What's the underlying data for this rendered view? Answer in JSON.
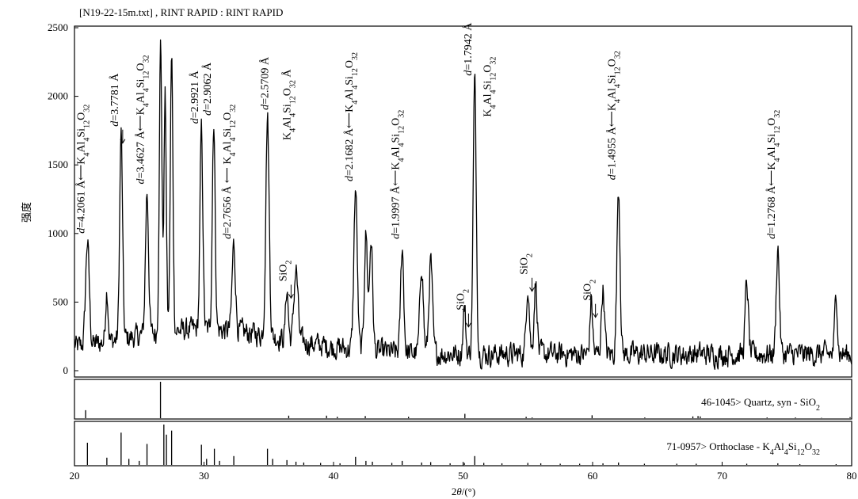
{
  "chart_data": {
    "type": "line",
    "title": "[N19-22-15m.txt] , RINT RAPID : RINT RAPID",
    "ylabel": "强度",
    "xlabel_parts": [
      "2",
      "θ",
      "/(°)"
    ],
    "xlim": [
      20,
      80
    ],
    "ylim": [
      0,
      2500
    ],
    "xticks": [
      20,
      30,
      40,
      50,
      60,
      70,
      80
    ],
    "yticks": [
      0,
      500,
      1000,
      1500,
      2000,
      2500
    ],
    "series": [
      {
        "peaks": [
          {
            "x": 21.0,
            "y": 940,
            "w": 0.14
          },
          {
            "x": 22.5,
            "y": 590,
            "w": 0.1
          },
          {
            "x": 23.6,
            "y": 1730,
            "w": 0.11
          },
          {
            "x": 25.6,
            "y": 1300,
            "w": 0.12
          },
          {
            "x": 26.65,
            "y": 2380,
            "w": 0.1
          },
          {
            "x": 27.0,
            "y": 2000,
            "w": 0.09
          },
          {
            "x": 27.5,
            "y": 2280,
            "w": 0.1
          },
          {
            "x": 29.8,
            "y": 1760,
            "w": 0.11
          },
          {
            "x": 30.75,
            "y": 1820,
            "w": 0.11
          },
          {
            "x": 32.3,
            "y": 920,
            "w": 0.13
          },
          {
            "x": 34.9,
            "y": 1850,
            "w": 0.13
          },
          {
            "x": 36.4,
            "y": 600,
            "w": 0.1
          },
          {
            "x": 37.1,
            "y": 740,
            "w": 0.15
          },
          {
            "x": 41.7,
            "y": 1330,
            "w": 0.13
          },
          {
            "x": 42.5,
            "y": 1000,
            "w": 0.12
          },
          {
            "x": 42.9,
            "y": 960,
            "w": 0.12
          },
          {
            "x": 45.3,
            "y": 900,
            "w": 0.12
          },
          {
            "x": 46.8,
            "y": 780,
            "w": 0.13
          },
          {
            "x": 47.5,
            "y": 800,
            "w": 0.13
          },
          {
            "x": 50.1,
            "y": 470,
            "w": 0.1
          },
          {
            "x": 50.9,
            "y": 2110,
            "w": 0.12
          },
          {
            "x": 55.0,
            "y": 630,
            "w": 0.12
          },
          {
            "x": 55.6,
            "y": 640,
            "w": 0.12
          },
          {
            "x": 59.9,
            "y": 520,
            "w": 0.1
          },
          {
            "x": 60.8,
            "y": 600,
            "w": 0.12
          },
          {
            "x": 62.0,
            "y": 1340,
            "w": 0.12
          },
          {
            "x": 71.9,
            "y": 640,
            "w": 0.12
          },
          {
            "x": 74.3,
            "y": 900,
            "w": 0.12
          },
          {
            "x": 78.8,
            "y": 580,
            "w": 0.1
          }
        ]
      }
    ],
    "annotations": [
      {
        "x": 21.0,
        "y": 1000,
        "arrow": "left",
        "parts": [
          [
            "d",
            "i"
          ],
          [
            "=4.2061 Å⟵K",
            ""
          ],
          [
            "4",
            "sub"
          ],
          [
            "Al",
            ""
          ],
          [
            "4",
            "sub"
          ],
          [
            "Si",
            ""
          ],
          [
            "12",
            "sub"
          ],
          [
            "O",
            ""
          ],
          [
            "32",
            "sub"
          ]
        ]
      },
      {
        "x": 23.6,
        "y": 1780,
        "arrow": "down",
        "parts": [
          [
            "d",
            "i"
          ],
          [
            "=3.7781 Å",
            ""
          ]
        ]
      },
      {
        "x": 25.6,
        "y": 1360,
        "arrow": "left",
        "parts": [
          [
            "d",
            "i"
          ],
          [
            "=3.4627 Å⟵K",
            ""
          ],
          [
            "4",
            "sub"
          ],
          [
            "Al",
            ""
          ],
          [
            "4",
            "sub"
          ],
          [
            "Si",
            ""
          ],
          [
            "12",
            "sub"
          ],
          [
            "O",
            ""
          ],
          [
            "32",
            "sub"
          ]
        ]
      },
      {
        "x": 29.8,
        "y": 1800,
        "arrow": "",
        "parts": [
          [
            "d",
            "i"
          ],
          [
            "=2.9921 Å",
            ""
          ]
        ]
      },
      {
        "x": 30.75,
        "y": 1860,
        "arrow": "",
        "parts": [
          [
            "d",
            "i"
          ],
          [
            "=2.9062 Å",
            ""
          ]
        ]
      },
      {
        "x": 32.3,
        "y": 960,
        "arrow": "left",
        "parts": [
          [
            "d",
            "i"
          ],
          [
            "=2.7656 Å ⟵ K",
            ""
          ],
          [
            "4",
            "sub"
          ],
          [
            "Al",
            ""
          ],
          [
            "4",
            "sub"
          ],
          [
            "Si",
            ""
          ],
          [
            "12",
            "sub"
          ],
          [
            "O",
            ""
          ],
          [
            "32",
            "sub"
          ]
        ]
      },
      {
        "x": 35.2,
        "y": 1900,
        "arrow": "",
        "parts": [
          [
            "d",
            "i"
          ],
          [
            "=2.5709 Å",
            ""
          ]
        ]
      },
      {
        "x": 36.9,
        "y": 1680,
        "arrow": "",
        "parts": [
          [
            "K",
            ""
          ],
          [
            "4",
            "sub"
          ],
          [
            "Al",
            ""
          ],
          [
            "4",
            "sub"
          ],
          [
            "Si",
            ""
          ],
          [
            "12",
            "sub"
          ],
          [
            "O",
            ""
          ],
          [
            "32",
            "sub"
          ],
          [
            " Å",
            ""
          ]
        ]
      },
      {
        "x": 36.6,
        "y": 650,
        "arrow": "down",
        "parts": [
          [
            "SiO",
            ""
          ],
          [
            "2",
            "sub"
          ]
        ]
      },
      {
        "x": 41.7,
        "y": 1380,
        "arrow": "left",
        "parts": [
          [
            "d",
            "i"
          ],
          [
            "=2.1682 Å⟵K",
            ""
          ],
          [
            "4",
            "sub"
          ],
          [
            "Al",
            ""
          ],
          [
            "4",
            "sub"
          ],
          [
            "Si",
            ""
          ],
          [
            "12",
            "sub"
          ],
          [
            "O",
            ""
          ],
          [
            "32",
            "sub"
          ]
        ]
      },
      {
        "x": 45.3,
        "y": 960,
        "arrow": "left",
        "parts": [
          [
            "d",
            "i"
          ],
          [
            "=1.9997 Å⟵K",
            ""
          ],
          [
            "4",
            "sub"
          ],
          [
            "Al",
            ""
          ],
          [
            "4",
            "sub"
          ],
          [
            "Si",
            ""
          ],
          [
            "12",
            "sub"
          ],
          [
            "O",
            ""
          ],
          [
            "32",
            "sub"
          ]
        ]
      },
      {
        "x": 50.3,
        "y": 440,
        "arrow": "down",
        "parts": [
          [
            "SiO",
            ""
          ],
          [
            "2",
            "sub"
          ]
        ]
      },
      {
        "x": 50.9,
        "y": 2150,
        "arrow": "",
        "parts": [
          [
            "d",
            "i"
          ],
          [
            "=1.7942 Å",
            ""
          ]
        ]
      },
      {
        "x": 52.4,
        "y": 1850,
        "arrow": "",
        "parts": [
          [
            "K",
            ""
          ],
          [
            "4",
            "sub"
          ],
          [
            "Al",
            ""
          ],
          [
            "4",
            "sub"
          ],
          [
            "Si",
            ""
          ],
          [
            "12",
            "sub"
          ],
          [
            "O",
            ""
          ],
          [
            "32",
            "sub"
          ]
        ]
      },
      {
        "x": 55.2,
        "y": 700,
        "arrow": "down",
        "parts": [
          [
            "SiO",
            ""
          ],
          [
            "2",
            "sub"
          ]
        ]
      },
      {
        "x": 60.1,
        "y": 510,
        "arrow": "down",
        "parts": [
          [
            "SiO",
            ""
          ],
          [
            "2",
            "sub"
          ]
        ]
      },
      {
        "x": 62.0,
        "y": 1390,
        "arrow": "left",
        "parts": [
          [
            "d",
            "i"
          ],
          [
            "=1.4955 Å⟵K",
            ""
          ],
          [
            "4",
            "sub"
          ],
          [
            "Al",
            ""
          ],
          [
            "4",
            "sub"
          ],
          [
            "Si",
            ""
          ],
          [
            "12",
            "sub"
          ],
          [
            "O",
            ""
          ],
          [
            "32",
            "sub"
          ]
        ]
      },
      {
        "x": 74.3,
        "y": 960,
        "arrow": "left",
        "parts": [
          [
            "d",
            "i"
          ],
          [
            "=1.2768 Å⟵K",
            ""
          ],
          [
            "4",
            "sub"
          ],
          [
            "Al",
            ""
          ],
          [
            "4",
            "sub"
          ],
          [
            "Si",
            ""
          ],
          [
            "12",
            "sub"
          ],
          [
            "O",
            ""
          ],
          [
            "32",
            "sub"
          ]
        ]
      }
    ],
    "reference_patterns": [
      {
        "label_parts": [
          [
            "46-1045> Quartz, syn - SiO",
            ""
          ],
          [
            "2",
            "sub"
          ]
        ],
        "lines": [
          [
            20.86,
            0.22
          ],
          [
            26.64,
            1.0
          ],
          [
            36.54,
            0.07
          ],
          [
            39.46,
            0.07
          ],
          [
            40.29,
            0.04
          ],
          [
            42.45,
            0.06
          ],
          [
            45.79,
            0.04
          ],
          [
            50.14,
            0.12
          ],
          [
            54.87,
            0.04
          ],
          [
            55.33,
            0.02
          ],
          [
            59.96,
            0.08
          ],
          [
            64.03,
            0.02
          ],
          [
            67.74,
            0.05
          ],
          [
            68.14,
            0.06
          ],
          [
            68.31,
            0.05
          ],
          [
            73.47,
            0.02
          ],
          [
            75.66,
            0.02
          ],
          [
            77.67,
            0.01
          ],
          [
            79.88,
            0.03
          ]
        ]
      },
      {
        "label_parts": [
          [
            "71-0957> Orthoclase - K",
            ""
          ],
          [
            "4",
            "sub"
          ],
          [
            "Al",
            ""
          ],
          [
            "4",
            "sub"
          ],
          [
            "Si",
            ""
          ],
          [
            "12",
            "sub"
          ],
          [
            "O",
            ""
          ],
          [
            "32",
            "sub"
          ]
        ],
        "lines": [
          [
            21.0,
            0.55
          ],
          [
            22.5,
            0.18
          ],
          [
            23.6,
            0.8
          ],
          [
            24.2,
            0.15
          ],
          [
            25.0,
            0.1
          ],
          [
            25.6,
            0.52
          ],
          [
            26.9,
            1.0
          ],
          [
            27.1,
            0.75
          ],
          [
            27.5,
            0.85
          ],
          [
            29.8,
            0.5
          ],
          [
            30.2,
            0.15
          ],
          [
            30.8,
            0.4
          ],
          [
            31.2,
            0.1
          ],
          [
            32.3,
            0.22
          ],
          [
            34.9,
            0.4
          ],
          [
            35.3,
            0.15
          ],
          [
            36.4,
            0.12
          ],
          [
            37.1,
            0.08
          ],
          [
            37.7,
            0.06
          ],
          [
            39.0,
            0.05
          ],
          [
            40.5,
            0.04
          ],
          [
            41.7,
            0.2
          ],
          [
            42.5,
            0.1
          ],
          [
            43.0,
            0.08
          ],
          [
            44.5,
            0.05
          ],
          [
            45.3,
            0.1
          ],
          [
            46.8,
            0.06
          ],
          [
            47.5,
            0.07
          ],
          [
            49.0,
            0.04
          ],
          [
            50.1,
            0.05
          ],
          [
            50.9,
            0.22
          ],
          [
            51.6,
            0.05
          ],
          [
            53.0,
            0.04
          ],
          [
            55.0,
            0.05
          ],
          [
            56.0,
            0.04
          ],
          [
            57.5,
            0.03
          ],
          [
            59.0,
            0.03
          ],
          [
            60.8,
            0.04
          ],
          [
            62.0,
            0.06
          ],
          [
            64.0,
            0.03
          ],
          [
            66.5,
            0.03
          ],
          [
            68.0,
            0.03
          ],
          [
            71.9,
            0.03
          ],
          [
            74.3,
            0.04
          ],
          [
            76.0,
            0.02
          ],
          [
            78.8,
            0.02
          ]
        ]
      }
    ]
  }
}
